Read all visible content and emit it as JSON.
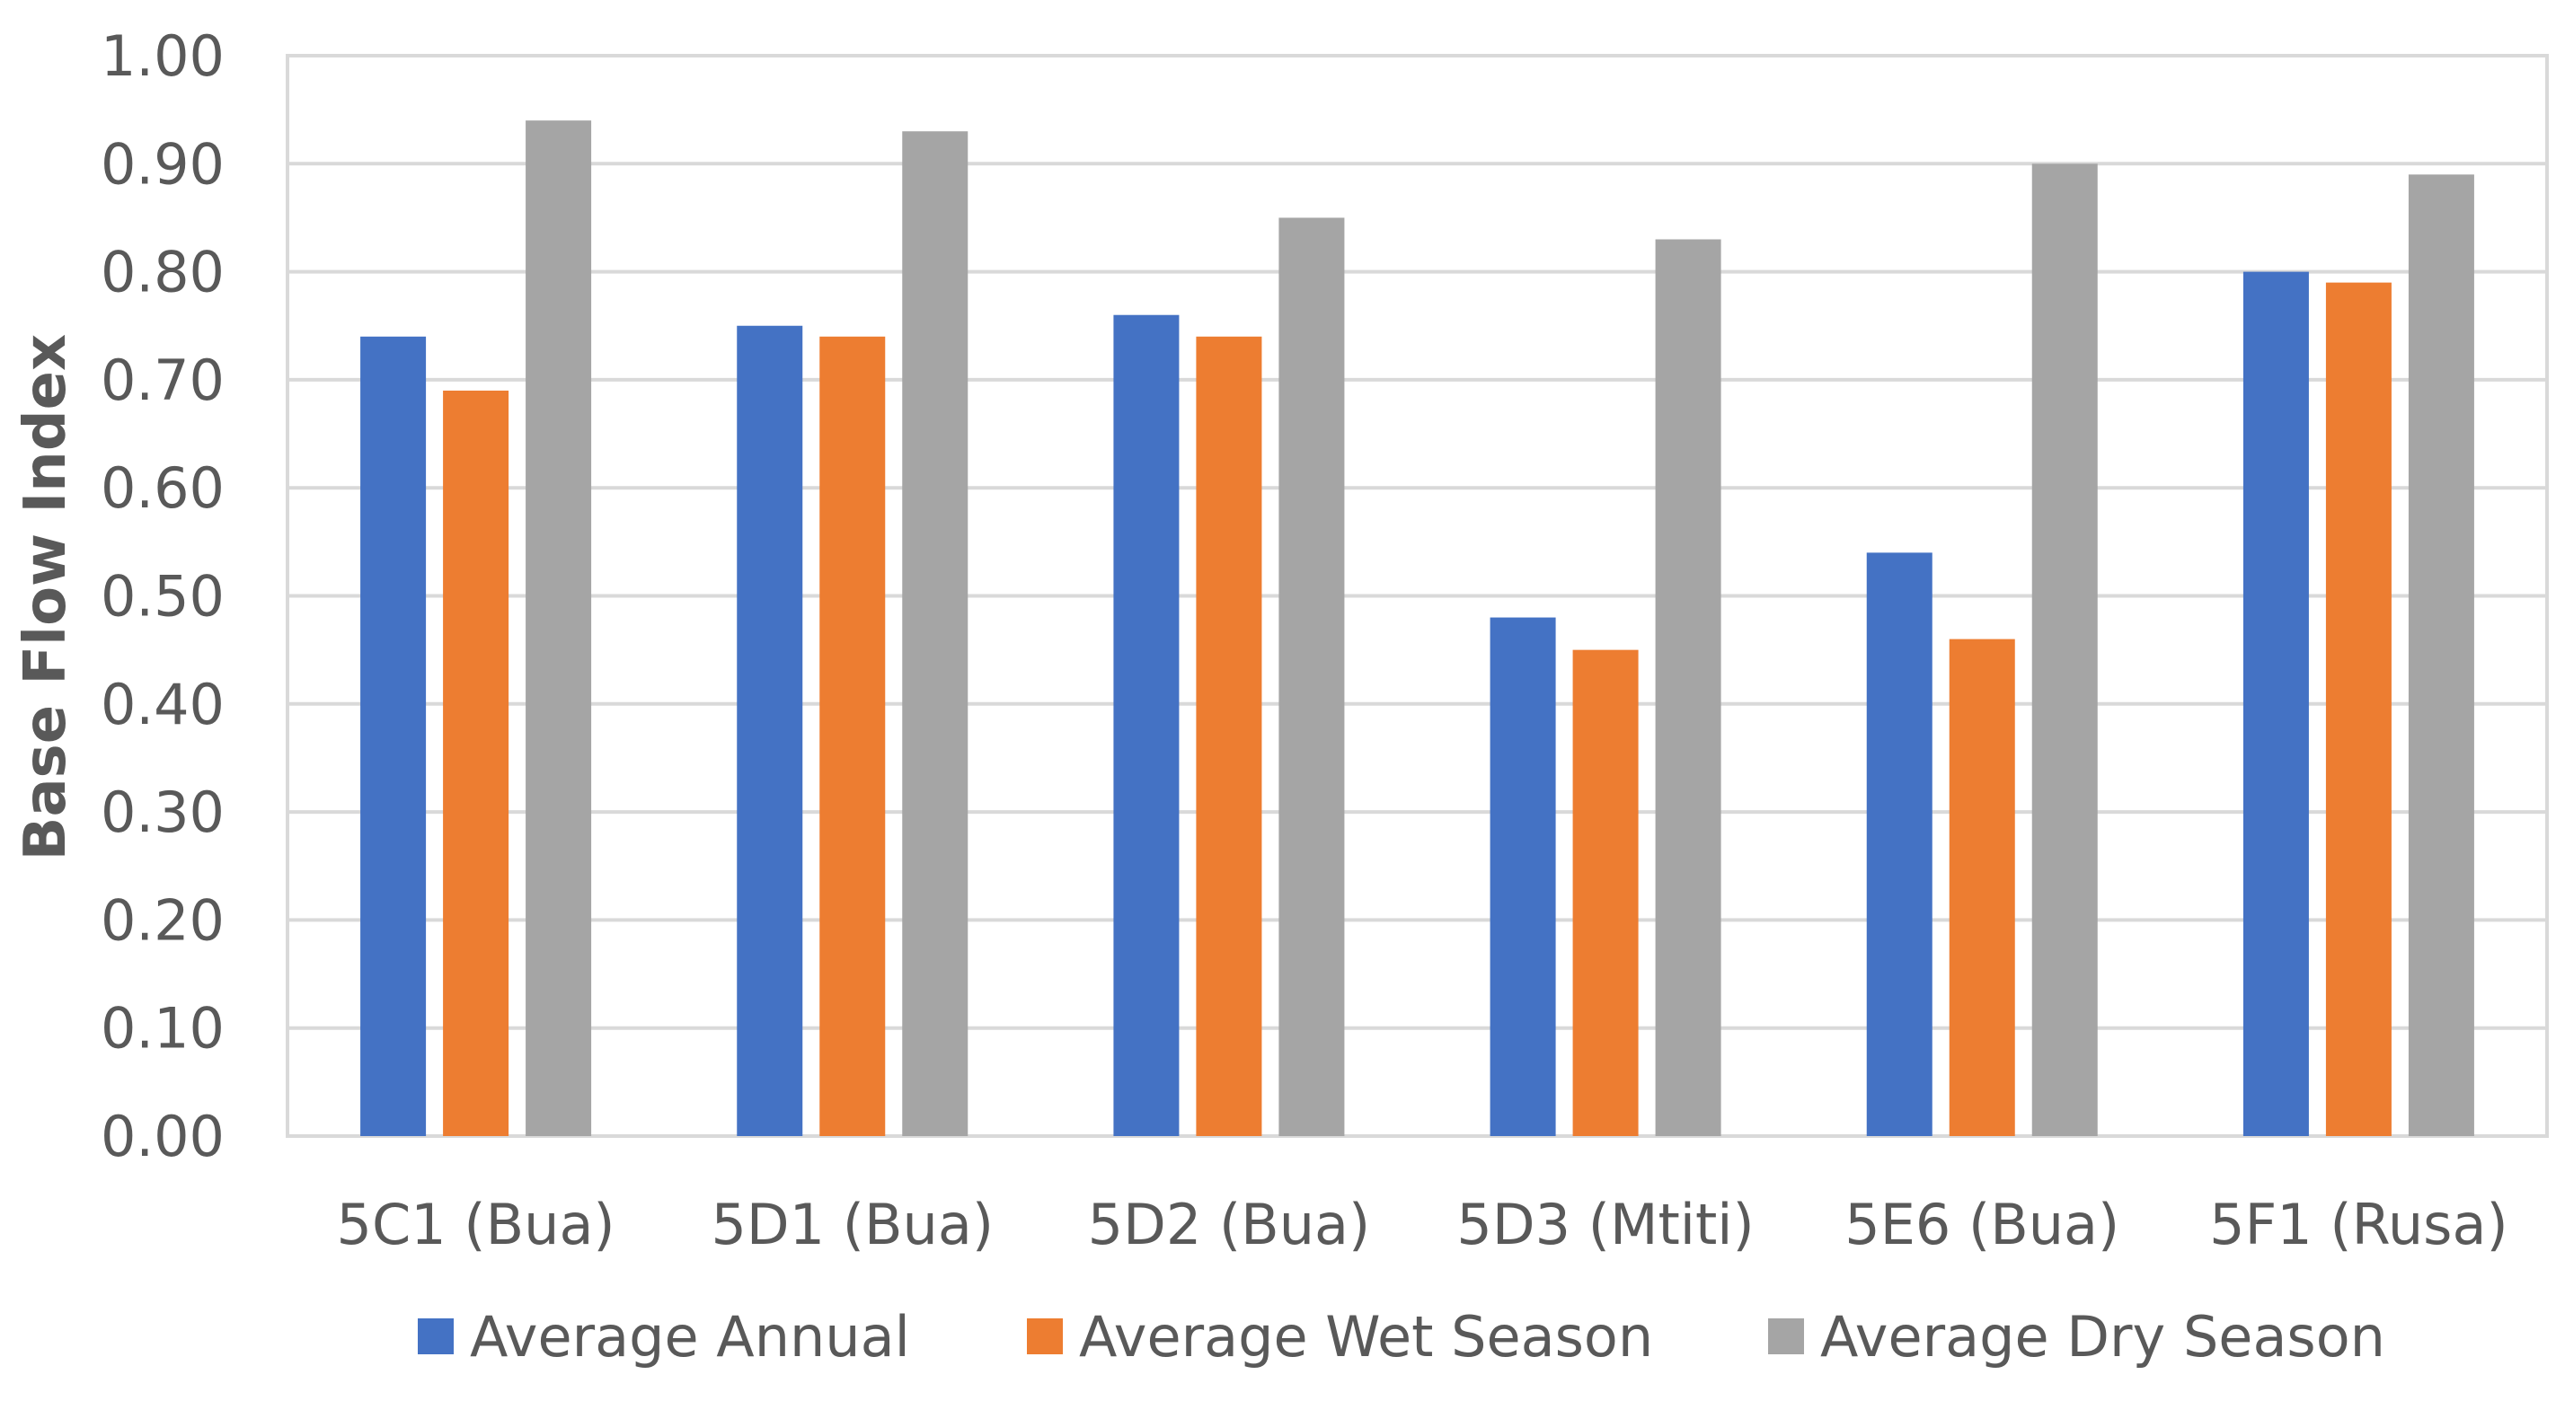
{
  "chart_data": {
    "type": "bar",
    "ylabel": "Base Flow Index",
    "xlabel": "",
    "ylim": [
      0,
      1.0
    ],
    "yticks": [
      "0.00",
      "0.10",
      "0.20",
      "0.30",
      "0.40",
      "0.50",
      "0.60",
      "0.70",
      "0.80",
      "0.90",
      "1.00"
    ],
    "grid": true,
    "legend_position": "bottom",
    "categories": [
      "5C1 (Bua)",
      "5D1 (Bua)",
      "5D2 (Bua)",
      "5D3 (Mtiti)",
      "5E6 (Bua)",
      "5F1 (Rusa)"
    ],
    "series": [
      {
        "name": "Average Annual",
        "color": "#4472C4",
        "values": [
          0.74,
          0.75,
          0.76,
          0.48,
          0.54,
          0.8
        ]
      },
      {
        "name": "Average Wet Season",
        "color": "#ED7D31",
        "values": [
          0.69,
          0.74,
          0.74,
          0.45,
          0.46,
          0.79
        ]
      },
      {
        "name": "Average Dry Season",
        "color": "#A5A5A5",
        "values": [
          0.94,
          0.93,
          0.85,
          0.83,
          0.9,
          0.89
        ]
      }
    ]
  }
}
